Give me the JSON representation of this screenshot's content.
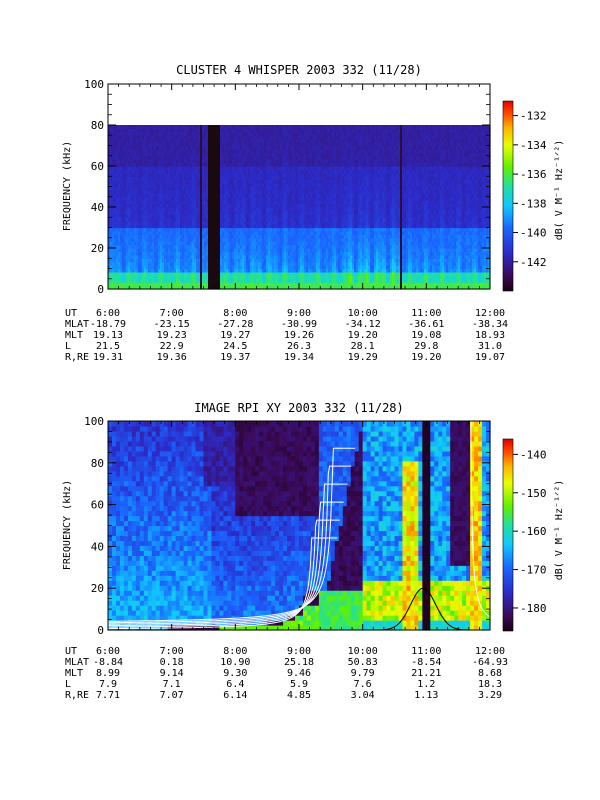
{
  "chart_data": [
    {
      "type": "heatmap",
      "title": "CLUSTER 4 WHISPER 2003 332 (11/28)",
      "ylabel": "FREQUENCY (kHz)",
      "ylim": [
        0,
        100
      ],
      "y_ticks": [
        "0",
        "20",
        "40",
        "60",
        "80",
        "100"
      ],
      "x_ticks": [
        "6:00",
        "7:00",
        "8:00",
        "9:00",
        "10:00",
        "11:00",
        "12:00"
      ],
      "xlim_hours": [
        6,
        12
      ],
      "colorbar": {
        "label": "dB( V M⁻¹ Hz⁻¹ᐟ²)",
        "range": [
          -144,
          -131
        ],
        "ticks": [
          "-132",
          "-134",
          "-136",
          "-138",
          "-140",
          "-142"
        ]
      },
      "data_gap_hours": [
        7.58,
        7.75
      ],
      "data_upper_khz": 80,
      "ephemeris": [
        {
          "label": "UT",
          "values": [
            "6:00",
            "7:00",
            "8:00",
            "9:00",
            "10:00",
            "11:00",
            "12:00"
          ]
        },
        {
          "label": "MLAT",
          "values": [
            "-18.79",
            "-23.15",
            "-27.28",
            "-30.99",
            "-34.12",
            "-36.61",
            "-38.34"
          ]
        },
        {
          "label": "MLT",
          "values": [
            "19.13",
            "19.23",
            "19.27",
            "19.26",
            "19.20",
            "19.08",
            "18.93"
          ]
        },
        {
          "label": "L",
          "values": [
            "21.5",
            "22.9",
            "24.5",
            "26.3",
            "28.1",
            "29.8",
            "31.0"
          ]
        },
        {
          "label": "R,RE",
          "values": [
            "19.31",
            "19.36",
            "19.37",
            "19.34",
            "19.29",
            "19.20",
            "19.07"
          ]
        }
      ]
    },
    {
      "type": "heatmap",
      "title": "IMAGE RPI XY 2003 332 (11/28)",
      "ylabel": "FREQUENCY (kHz)",
      "ylim": [
        0,
        100
      ],
      "y_ticks": [
        "0",
        "20",
        "40",
        "60",
        "80",
        "100"
      ],
      "x_ticks": [
        "6:00",
        "7:00",
        "8:00",
        "9:00",
        "10:00",
        "11:00",
        "12:00"
      ],
      "xlim_hours": [
        6,
        12
      ],
      "colorbar": {
        "label": "dB( V M⁻¹ Hz⁻¹ᐟ²)",
        "range": [
          -186,
          -136
        ],
        "ticks": [
          "-140",
          "-150",
          "-160",
          "-170",
          "-180"
        ]
      },
      "ephemeris": [
        {
          "label": "UT",
          "values": [
            "6:00",
            "7:00",
            "8:00",
            "9:00",
            "10:00",
            "11:00",
            "12:00"
          ]
        },
        {
          "label": "MLAT",
          "values": [
            "-8.84",
            "0.18",
            "10.90",
            "25.18",
            "50.83",
            "-8.54",
            "-64.93"
          ]
        },
        {
          "label": "MLT",
          "values": [
            "8.99",
            "9.14",
            "9.30",
            "9.46",
            "9.79",
            "21.21",
            "8.68"
          ]
        },
        {
          "label": "L",
          "values": [
            "7.9",
            "7.1",
            "6.4",
            "5.9",
            "7.6",
            "1.2",
            "18.3"
          ]
        },
        {
          "label": "R,RE",
          "values": [
            "7.71",
            "7.07",
            "6.14",
            "4.85",
            "3.04",
            "1.13",
            "3.29"
          ]
        }
      ]
    }
  ]
}
